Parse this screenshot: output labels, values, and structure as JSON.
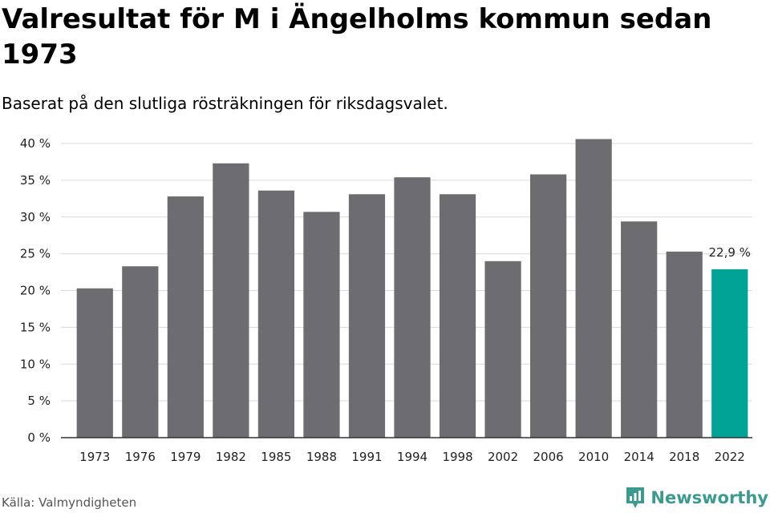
{
  "header": {
    "title": "Valresultat för M i Ängelholms kommun sedan 1973",
    "subtitle": "Baserat på den slutliga rösträkningen för riksdagsvalet."
  },
  "footer": {
    "source": "Källa: Valmyndigheten",
    "brand": "Newsworthy"
  },
  "colors": {
    "bar": "#6d6c71",
    "highlight": "#00a396",
    "grid": "#d9d9d9",
    "axis": "#333333",
    "brand": "#3d9a8f"
  },
  "icons": {
    "brand": "newsworthy-logo-icon"
  },
  "chart_data": {
    "type": "bar",
    "title": "Valresultat för M i Ängelholms kommun sedan 1973",
    "subtitle": "Baserat på den slutliga rösträkningen för riksdagsvalet.",
    "xlabel": "",
    "ylabel": "",
    "categories": [
      "1973",
      "1976",
      "1979",
      "1982",
      "1985",
      "1988",
      "1991",
      "1994",
      "1998",
      "2002",
      "2006",
      "2010",
      "2014",
      "2018",
      "2022"
    ],
    "values": [
      20.3,
      23.3,
      32.8,
      37.3,
      33.6,
      30.7,
      33.1,
      35.4,
      33.1,
      24.0,
      35.8,
      40.6,
      29.4,
      25.3,
      22.9
    ],
    "ylim": [
      0,
      40
    ],
    "yticks": [
      0,
      5,
      10,
      15,
      20,
      25,
      30,
      35,
      40
    ],
    "ytick_labels": [
      "0 %",
      "5 %",
      "10 %",
      "15 %",
      "20 %",
      "25 %",
      "30 %",
      "35 %",
      "40 %"
    ],
    "highlight_index": 14,
    "data_labels": [
      {
        "index": 14,
        "text": "22,9 %"
      }
    ],
    "grid": true,
    "legend": "none"
  }
}
